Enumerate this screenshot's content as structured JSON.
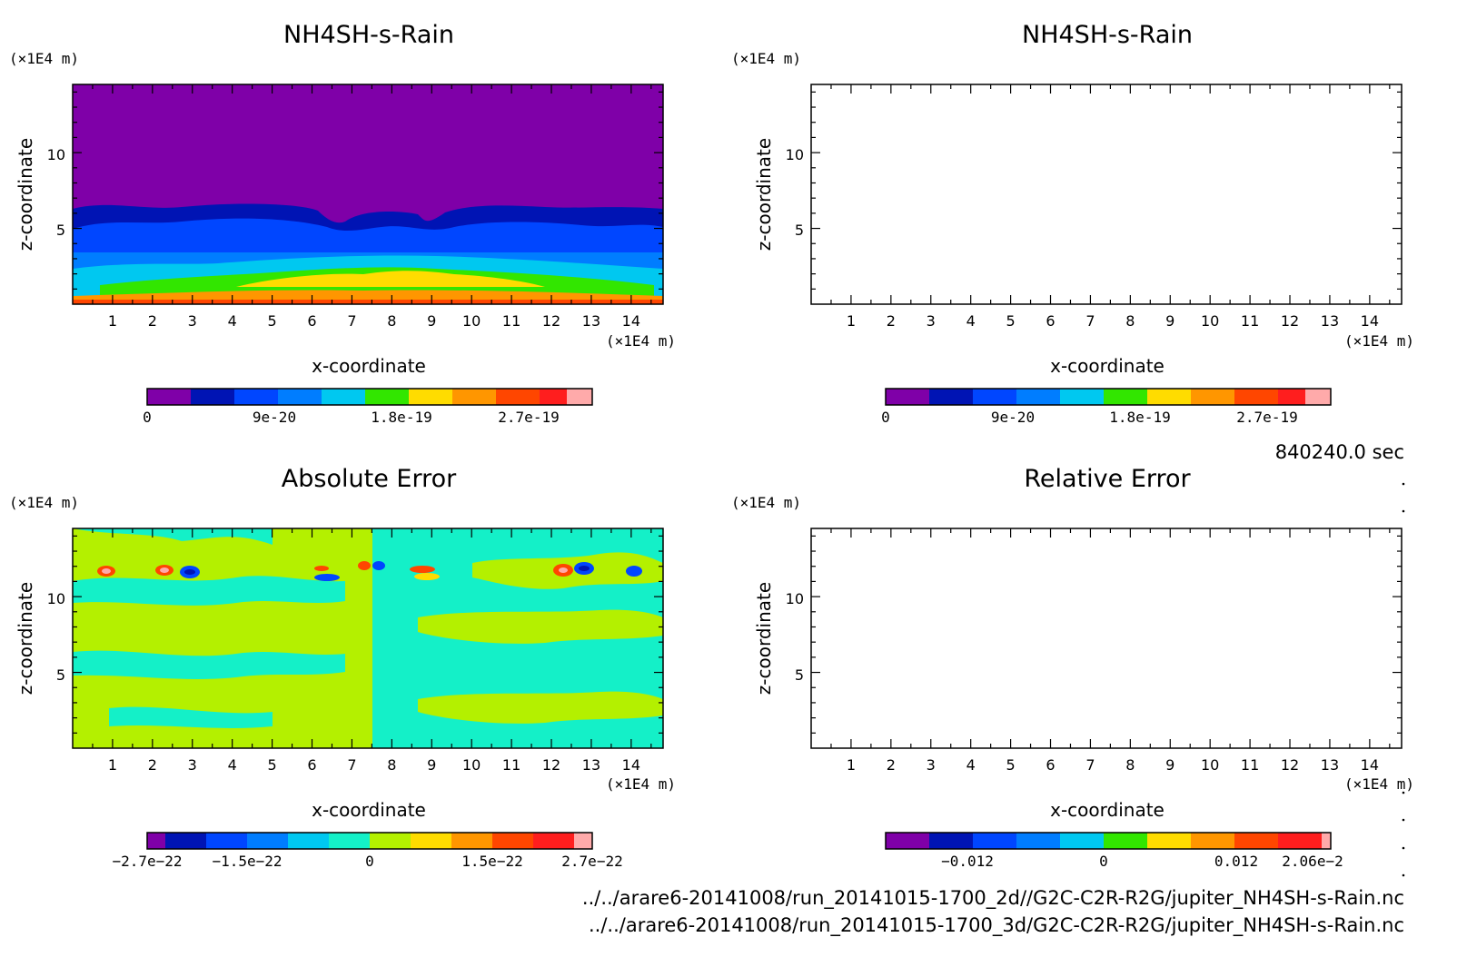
{
  "colors": {
    "purple": "#7f00a8",
    "navy": "#0014b4",
    "blue": "#0046ff",
    "blue2": "#007dff",
    "sky": "#00c8f0",
    "green": "#32e600",
    "lime": "#b4f000",
    "yellow": "#ffdc00",
    "orange": "#ff9600",
    "redorange": "#ff4600",
    "red": "#ff1e1e",
    "pink": "#ffaaaa",
    "mint": "#14f0c8",
    "teal": "#00d2c8"
  },
  "annotations": {
    "time": "840240.0 sec",
    "file1": "../../arare6-20141008/run_20141015-1700_2d//G2C-C2R-R2G/jupiter_NH4SH-s-Rain.nc",
    "file2": "../../arare6-20141008/run_20141015-1700_3d/G2C-C2R-R2G/jupiter_NH4SH-s-Rain.nc"
  },
  "chart_data": [
    {
      "type": "heatmap",
      "title": "NH4SH-s-Rain",
      "xlabel": "x-coordinate",
      "ylabel": "z-coordinate",
      "x_unit": "(×1E4 m)",
      "y_unit": "(×1E4 m)",
      "xlim": [
        0,
        14.8
      ],
      "ylim": [
        0,
        14.5
      ],
      "x_ticks": [
        "1",
        "2",
        "3",
        "4",
        "5",
        "6",
        "7",
        "8",
        "9",
        "10",
        "11",
        "12",
        "13",
        "14"
      ],
      "y_ticks": [
        "5",
        "10"
      ],
      "colorbar": {
        "colors": [
          "purple",
          "navy",
          "blue",
          "blue2",
          "sky",
          "green",
          "yellow",
          "orange",
          "redorange",
          "red",
          "pink"
        ],
        "tick_labels": [
          "0",
          "9e-20",
          "1.8e-19",
          "2.7e-19"
        ]
      }
    },
    {
      "type": "heatmap",
      "title": "NH4SH-s-Rain",
      "xlabel": "x-coordinate",
      "ylabel": "z-coordinate",
      "x_unit": "(×1E4 m)",
      "y_unit": "(×1E4 m)",
      "xlim": [
        0,
        14.8
      ],
      "ylim": [
        0,
        14.5
      ],
      "x_ticks": [
        "1",
        "2",
        "3",
        "4",
        "5",
        "6",
        "7",
        "8",
        "9",
        "10",
        "11",
        "12",
        "13",
        "14"
      ],
      "y_ticks": [
        "5",
        "10"
      ],
      "colorbar": {
        "colors": [
          "purple",
          "navy",
          "blue",
          "blue2",
          "sky",
          "green",
          "yellow",
          "orange",
          "redorange",
          "red",
          "pink"
        ],
        "tick_labels": [
          "0",
          "9e-20",
          "1.8e-19",
          "2.7e-19"
        ]
      }
    },
    {
      "type": "heatmap",
      "title": "Absolute Error",
      "xlabel": "x-coordinate",
      "ylabel": "z-coordinate",
      "x_unit": "(×1E4 m)",
      "y_unit": "(×1E4 m)",
      "xlim": [
        0,
        14.8
      ],
      "ylim": [
        0,
        14.5
      ],
      "x_ticks": [
        "1",
        "2",
        "3",
        "4",
        "5",
        "6",
        "7",
        "8",
        "9",
        "10",
        "11",
        "12",
        "13",
        "14"
      ],
      "y_ticks": [
        "5",
        "10"
      ],
      "colorbar": {
        "colors": [
          "purple",
          "navy",
          "blue",
          "blue2",
          "sky",
          "mint",
          "lime",
          "yellow",
          "orange",
          "redorange",
          "red",
          "pink"
        ],
        "tick_labels": [
          "−2.7e−22",
          "−1.5e−22",
          "0",
          "1.5e−22",
          "2.7e−22"
        ]
      }
    },
    {
      "type": "heatmap",
      "title": "Relative Error",
      "xlabel": "x-coordinate",
      "ylabel": "z-coordinate",
      "x_unit": "(×1E4 m)",
      "y_unit": "(×1E4 m)",
      "xlim": [
        0,
        14.8
      ],
      "ylim": [
        0,
        14.5
      ],
      "x_ticks": [
        "1",
        "2",
        "3",
        "4",
        "5",
        "6",
        "7",
        "8",
        "9",
        "10",
        "11",
        "12",
        "13",
        "14"
      ],
      "y_ticks": [
        "5",
        "10"
      ],
      "colorbar": {
        "colors": [
          "purple",
          "navy",
          "blue",
          "blue2",
          "sky",
          "green",
          "yellow",
          "orange",
          "redorange",
          "red",
          "pink"
        ],
        "tick_labels": [
          "−0.012",
          "0",
          "0.012",
          "2.06e−2"
        ]
      }
    }
  ]
}
